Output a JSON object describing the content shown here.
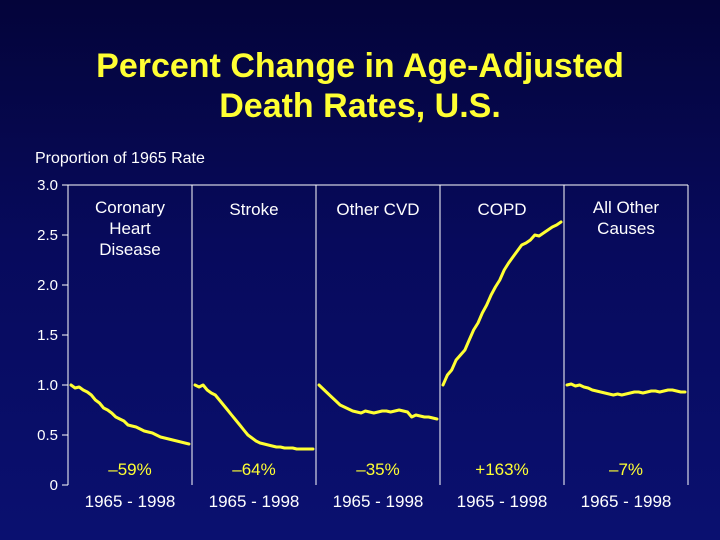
{
  "title_line1": "Percent Change in Age-Adjusted",
  "title_line2": "Death Rates, U.S.",
  "chart_data": {
    "type": "line",
    "title": "Percent Change in Age-Adjusted Death Rates, U.S.",
    "ylabel": "Proportion of 1965 Rate",
    "ylim": [
      0,
      3.0
    ],
    "yticks": [
      "0",
      "0.5",
      "1.0",
      "1.5",
      "2.0",
      "2.5",
      "3.0"
    ],
    "panels": [
      {
        "name": "Coronary Heart Disease",
        "label_lines": [
          "Coronary",
          "Heart",
          "Disease"
        ],
        "change": "–59%",
        "period": "1965 - 1998",
        "values": [
          1.0,
          0.97,
          0.98,
          0.95,
          0.93,
          0.9,
          0.85,
          0.82,
          0.77,
          0.75,
          0.72,
          0.68,
          0.66,
          0.64,
          0.6,
          0.59,
          0.58,
          0.56,
          0.54,
          0.53,
          0.52,
          0.5,
          0.48,
          0.47,
          0.46,
          0.45,
          0.44,
          0.43,
          0.42,
          0.41
        ]
      },
      {
        "name": "Stroke",
        "label_lines": [
          "Stroke"
        ],
        "change": "–64%",
        "period": "1965 - 1998",
        "values": [
          1.0,
          0.98,
          1.0,
          0.95,
          0.92,
          0.9,
          0.85,
          0.8,
          0.75,
          0.7,
          0.65,
          0.6,
          0.55,
          0.5,
          0.47,
          0.44,
          0.42,
          0.41,
          0.4,
          0.39,
          0.38,
          0.38,
          0.37,
          0.37,
          0.37,
          0.36,
          0.36,
          0.36,
          0.36,
          0.36
        ]
      },
      {
        "name": "Other CVD",
        "label_lines": [
          "Other CVD"
        ],
        "change": "–35%",
        "period": "1965 - 1998",
        "values": [
          1.0,
          0.96,
          0.92,
          0.88,
          0.84,
          0.8,
          0.78,
          0.76,
          0.74,
          0.73,
          0.72,
          0.74,
          0.73,
          0.72,
          0.73,
          0.74,
          0.74,
          0.73,
          0.74,
          0.75,
          0.74,
          0.73,
          0.68,
          0.7,
          0.69,
          0.68,
          0.68,
          0.67,
          0.66
        ]
      },
      {
        "name": "COPD",
        "label_lines": [
          "COPD"
        ],
        "change": "+163%",
        "period": "1965 - 1998",
        "values": [
          1.0,
          1.1,
          1.15,
          1.25,
          1.3,
          1.35,
          1.45,
          1.55,
          1.62,
          1.72,
          1.8,
          1.9,
          1.98,
          2.05,
          2.15,
          2.22,
          2.28,
          2.34,
          2.4,
          2.42,
          2.45,
          2.5,
          2.49,
          2.52,
          2.55,
          2.58,
          2.6,
          2.63
        ]
      },
      {
        "name": "All Other Causes",
        "label_lines": [
          "All Other",
          "Causes"
        ],
        "change": "–7%",
        "period": "1965 - 1998",
        "values": [
          1.0,
          1.01,
          0.99,
          1.0,
          0.98,
          0.97,
          0.95,
          0.94,
          0.93,
          0.92,
          0.91,
          0.9,
          0.91,
          0.9,
          0.91,
          0.92,
          0.93,
          0.93,
          0.92,
          0.93,
          0.94,
          0.94,
          0.93,
          0.94,
          0.95,
          0.95,
          0.94,
          0.93,
          0.93
        ]
      }
    ]
  },
  "colors": {
    "background": "#070a5c",
    "line": "#ffff33",
    "title": "#ffff33",
    "text": "#ffffff"
  }
}
